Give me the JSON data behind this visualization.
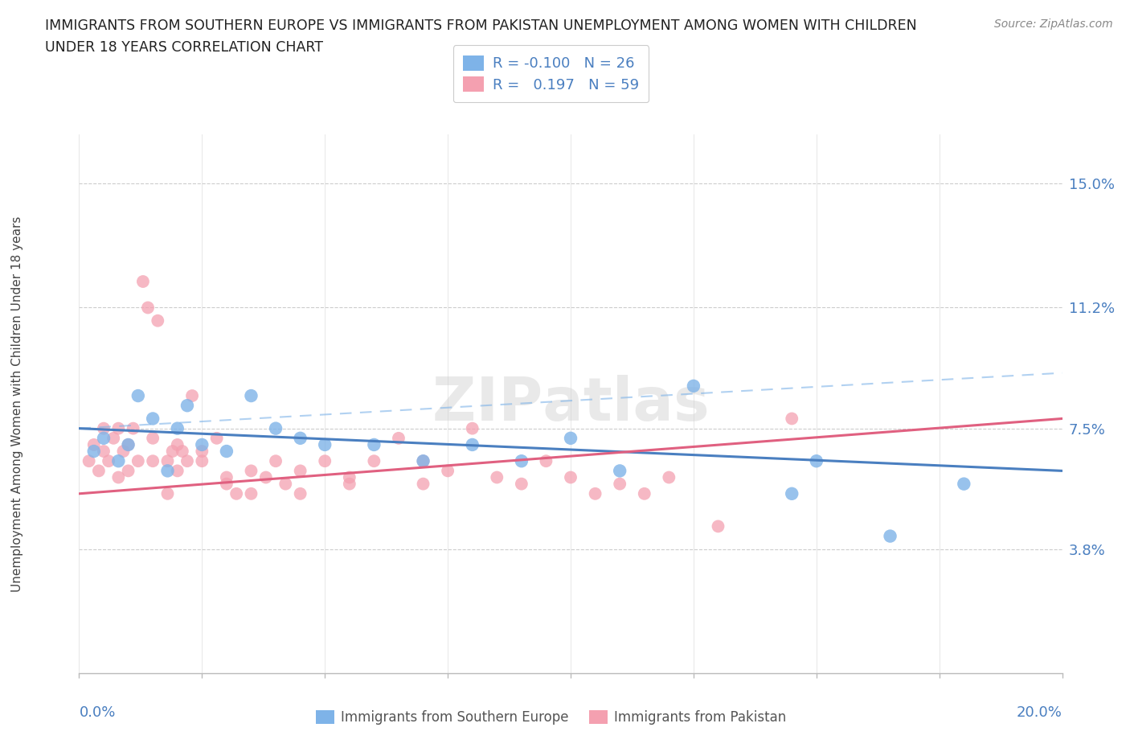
{
  "title": "IMMIGRANTS FROM SOUTHERN EUROPE VS IMMIGRANTS FROM PAKISTAN UNEMPLOYMENT AMONG WOMEN WITH CHILDREN\nUNDER 18 YEARS CORRELATION CHART",
  "source": "Source: ZipAtlas.com",
  "ylabel": "Unemployment Among Women with Children Under 18 years",
  "ytick_values": [
    3.8,
    7.5,
    11.2,
    15.0
  ],
  "xlim": [
    0.0,
    20.0
  ],
  "ylim": [
    0.0,
    16.5
  ],
  "legend1_r": "-0.100",
  "legend1_n": "26",
  "legend2_r": "0.197",
  "legend2_n": "59",
  "color_blue": "#7EB3E8",
  "color_pink": "#F4A0B0",
  "color_blue_line": "#4A7FC0",
  "color_pink_line": "#E06080",
  "color_blue_dashed": "#7EB3E8",
  "color_blue_text": "#4A7FC0",
  "blue_scatter_x": [
    0.3,
    0.5,
    0.8,
    1.0,
    1.2,
    1.5,
    1.8,
    2.0,
    2.2,
    2.5,
    3.0,
    3.5,
    4.0,
    4.5,
    5.0,
    6.0,
    7.0,
    8.0,
    9.0,
    10.0,
    11.0,
    12.5,
    14.5,
    15.0,
    16.5,
    18.0
  ],
  "blue_scatter_y": [
    6.8,
    7.2,
    6.5,
    7.0,
    8.5,
    7.8,
    6.2,
    7.5,
    8.2,
    7.0,
    6.8,
    8.5,
    7.5,
    7.2,
    7.0,
    7.0,
    6.5,
    7.0,
    6.5,
    7.2,
    6.2,
    8.8,
    5.5,
    6.5,
    4.2,
    5.8
  ],
  "pink_scatter_x": [
    0.2,
    0.3,
    0.4,
    0.5,
    0.5,
    0.6,
    0.7,
    0.8,
    0.8,
    0.9,
    1.0,
    1.0,
    1.1,
    1.2,
    1.3,
    1.4,
    1.5,
    1.5,
    1.6,
    1.8,
    1.8,
    1.9,
    2.0,
    2.0,
    2.1,
    2.2,
    2.3,
    2.5,
    2.5,
    2.8,
    3.0,
    3.0,
    3.2,
    3.5,
    3.5,
    3.8,
    4.0,
    4.2,
    4.5,
    4.5,
    5.0,
    5.5,
    5.5,
    6.0,
    6.5,
    7.0,
    7.0,
    7.5,
    8.0,
    8.5,
    9.0,
    9.5,
    10.0,
    10.5,
    11.0,
    11.5,
    12.0,
    13.0,
    14.5
  ],
  "pink_scatter_y": [
    6.5,
    7.0,
    6.2,
    7.5,
    6.8,
    6.5,
    7.2,
    7.5,
    6.0,
    6.8,
    7.0,
    6.2,
    7.5,
    6.5,
    12.0,
    11.2,
    7.2,
    6.5,
    10.8,
    6.5,
    5.5,
    6.8,
    7.0,
    6.2,
    6.8,
    6.5,
    8.5,
    6.8,
    6.5,
    7.2,
    6.0,
    5.8,
    5.5,
    6.2,
    5.5,
    6.0,
    6.5,
    5.8,
    6.2,
    5.5,
    6.5,
    5.8,
    6.0,
    6.5,
    7.2,
    6.5,
    5.8,
    6.2,
    7.5,
    6.0,
    5.8,
    6.5,
    6.0,
    5.5,
    5.8,
    5.5,
    6.0,
    4.5,
    7.8
  ],
  "blue_line_x0": 0.0,
  "blue_line_x1": 20.0,
  "blue_line_y0": 7.5,
  "blue_line_y1": 6.2,
  "pink_line_x0": 0.0,
  "pink_line_x1": 20.0,
  "pink_line_y0": 5.5,
  "pink_line_y1": 7.8,
  "blue_dashed_x0": 0.0,
  "blue_dashed_x1": 20.0,
  "blue_dashed_y0": 7.5,
  "blue_dashed_y1": 9.2
}
